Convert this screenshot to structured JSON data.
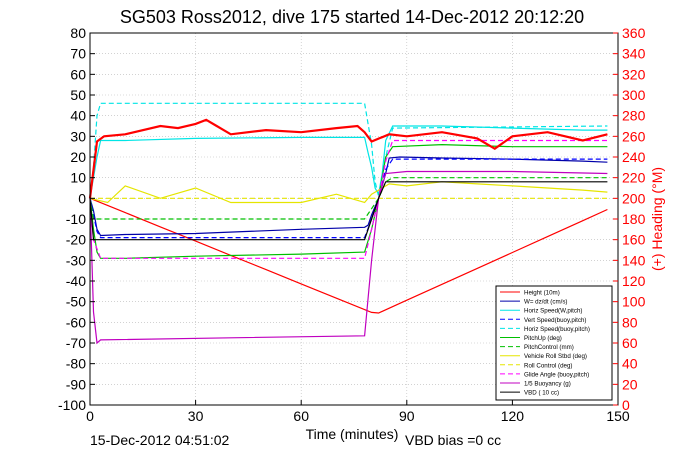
{
  "chart_data": {
    "type": "line",
    "title": "SG503 Ross2012, dive 175 started 14-Dec-2012 20:12:20",
    "xlabel": "Time (minutes)",
    "ylabel_right": "(+) Heading (°M)",
    "xlim": [
      0,
      150
    ],
    "ylim": [
      -100,
      80
    ],
    "ylim_right": [
      0,
      360
    ],
    "x_ticks": [
      "0",
      "30",
      "60",
      "90",
      "120",
      "150"
    ],
    "y_ticks": [
      "80",
      "70",
      "60",
      "50",
      "40",
      "30",
      "20",
      "10",
      "0",
      "-10",
      "-20",
      "-30",
      "-40",
      "-50",
      "-60",
      "-70",
      "-80",
      "-90",
      "-100"
    ],
    "y_ticks_right": [
      "360",
      "340",
      "320",
      "300",
      "280",
      "260",
      "240",
      "220",
      "200",
      "180",
      "160",
      "140",
      "120",
      "100",
      "80",
      "60",
      "40",
      "20",
      "0"
    ],
    "grid": true,
    "legend_position": "bottom-right",
    "footer_left": "15-Dec-2012 04:51:02",
    "footer_right": "VBD bias =0 cc",
    "series": [
      {
        "name": "Height (10m)",
        "color": "#ff0000",
        "style": "solid",
        "x": [
          0,
          10,
          20,
          30,
          40,
          50,
          60,
          70,
          80,
          82,
          90,
          100,
          110,
          120,
          130,
          140,
          147
        ],
        "values": [
          0,
          -6.9,
          -13.8,
          -20.7,
          -27.6,
          -34.5,
          -41.4,
          -48.3,
          -55.2,
          -55.5,
          -49.3,
          -41.6,
          -33.9,
          -26.2,
          -18.5,
          -10.8,
          -5.4
        ]
      },
      {
        "name": "W= dz/dt (cm/s)",
        "color": "#0000aa",
        "style": "solid",
        "x": [
          0,
          1,
          2,
          3,
          10,
          30,
          60,
          78,
          79,
          80,
          82,
          84,
          85,
          88,
          100,
          120,
          140,
          147
        ],
        "values": [
          0,
          -6,
          -15,
          -18,
          -17.5,
          -17,
          -15,
          -14,
          -13,
          -8,
          0,
          12,
          19.5,
          20,
          19.5,
          19,
          18,
          17.5
        ]
      },
      {
        "name": "Horiz Speed(W,pitch)",
        "color": "#00e5e5",
        "style": "solid",
        "x": [
          0,
          1,
          2,
          3,
          10,
          30,
          60,
          78,
          79,
          80,
          81,
          82,
          83,
          84,
          86,
          100,
          120,
          140,
          147
        ],
        "values": [
          0,
          10,
          20,
          28,
          28,
          29,
          29.5,
          29.5,
          22,
          15,
          5,
          2,
          12,
          28,
          35,
          35,
          34,
          33,
          33
        ]
      },
      {
        "name": "Vert Speed(buoy,pitch)",
        "color": "#0000ff",
        "style": "dashed",
        "x": [
          0,
          1,
          2,
          3,
          10,
          78,
          80,
          82,
          84,
          86,
          147
        ],
        "values": [
          0,
          -8,
          -16,
          -19,
          -19,
          -19,
          -10,
          0,
          14,
          19,
          19
        ]
      },
      {
        "name": "Horiz Speed(buoy,pitch)",
        "color": "#00e5e5",
        "style": "dashed",
        "x": [
          0,
          1,
          2,
          3,
          78,
          80,
          81,
          82,
          84,
          86,
          147
        ],
        "values": [
          0,
          15,
          40,
          46,
          46,
          26,
          8,
          1,
          20,
          34,
          35
        ]
      },
      {
        "name": "PitchUp (deg)",
        "color": "#00c000",
        "style": "solid",
        "x": [
          0,
          1,
          2,
          3,
          10,
          30,
          60,
          78,
          80,
          82,
          84,
          86,
          100,
          120,
          147
        ],
        "values": [
          0,
          -15,
          -26,
          -29,
          -29,
          -28,
          -27,
          -26,
          -15,
          0,
          20,
          25,
          26,
          25,
          25
        ]
      },
      {
        "name": "PitchControl (mm)",
        "color": "#00c000",
        "style": "dashed",
        "x": [
          0,
          1,
          3,
          78,
          80,
          82,
          84,
          86,
          147
        ],
        "values": [
          0,
          -10,
          -10,
          -10,
          -5,
          0,
          8,
          10,
          10
        ]
      },
      {
        "name": "Vehicle Roll Stbd (deg)",
        "color": "#e5e500",
        "style": "solid",
        "x": [
          0,
          5,
          10,
          20,
          30,
          40,
          50,
          60,
          70,
          78,
          80,
          82,
          85,
          90,
          100,
          110,
          120,
          130,
          140,
          147
        ],
        "values": [
          0,
          -2,
          6,
          0,
          5,
          -2,
          -2,
          -2,
          2,
          -2,
          2,
          4,
          7,
          6,
          8,
          7,
          6,
          5,
          4,
          3
        ]
      },
      {
        "name": "Roll Control (deg)",
        "color": "#e5e500",
        "style": "dashed",
        "x": [
          0,
          147
        ],
        "values": [
          0,
          0
        ]
      },
      {
        "name": "Glide Angle (buoy,pitch)",
        "color": "#ff00ff",
        "style": "dashed",
        "x": [
          0,
          1,
          3,
          78,
          80,
          82,
          84,
          86,
          147
        ],
        "values": [
          0,
          -20,
          -29,
          -29,
          -15,
          0,
          18,
          28,
          28
        ]
      },
      {
        "name": "1/5 Buoyancy (g)",
        "color": "#c000c0",
        "style": "solid",
        "x": [
          0,
          1,
          2,
          3,
          40,
          78,
          80,
          82,
          84,
          90,
          120,
          147
        ],
        "values": [
          0,
          -55,
          -70,
          -68.5,
          -67.5,
          -66.5,
          -30,
          0,
          12,
          13,
          13,
          12
        ]
      },
      {
        "name": "VBD ( 10 cc)",
        "color": "#000000",
        "style": "solid",
        "x": [
          0,
          1,
          2,
          3,
          78,
          80,
          82,
          84,
          147
        ],
        "values": [
          0,
          -20,
          -20,
          -20,
          -20,
          -10,
          0,
          8,
          8
        ]
      }
    ],
    "heading_series": {
      "color": "#ff0000",
      "style": "solid",
      "x": [
        0,
        2,
        4,
        10,
        20,
        25,
        30,
        33,
        36,
        40,
        50,
        60,
        70,
        76,
        78,
        80,
        85,
        90,
        100,
        110,
        115,
        120,
        130,
        140,
        147
      ],
      "values": [
        200,
        255,
        260,
        262,
        270,
        268,
        272,
        276,
        270,
        262,
        266,
        264,
        268,
        270,
        264,
        255,
        262,
        260,
        264,
        258,
        248,
        260,
        264,
        256,
        262
      ]
    }
  }
}
